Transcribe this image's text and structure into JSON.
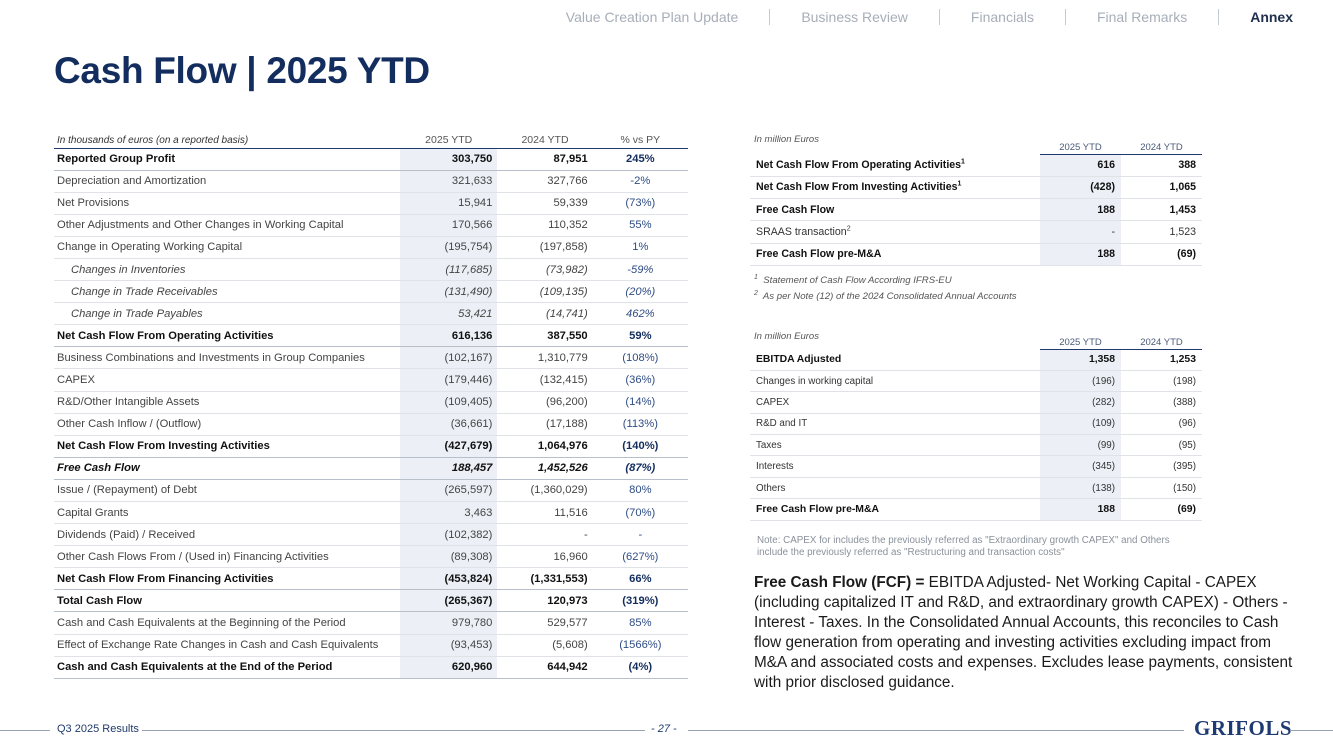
{
  "nav": {
    "items": [
      "Value Creation Plan Update",
      "Business Review",
      "Financials",
      "Final Remarks",
      "Annex"
    ],
    "active": "Annex"
  },
  "title": "Cash Flow | 2025 YTD",
  "main_table": {
    "header": {
      "label": "In thousands of euros (on a reported basis)",
      "col1": "2025 YTD",
      "col2": "2024 YTD",
      "col3": "% vs PY"
    },
    "rows": [
      {
        "label": "Reported Group Profit",
        "v1": "303,750",
        "v2": "87,951",
        "v3": "245%",
        "style": "bold"
      },
      {
        "label": "Depreciation and Amortization",
        "v1": "321,633",
        "v2": "327,766",
        "v3": "-2%",
        "style": ""
      },
      {
        "label": "Net Provisions",
        "v1": "15,941",
        "v2": "59,339",
        "v3": "(73%)",
        "style": ""
      },
      {
        "label": "Other Adjustments and Other Changes in Working Capital",
        "v1": "170,566",
        "v2": "110,352",
        "v3": "55%",
        "style": ""
      },
      {
        "label": "Change in Operating Working Capital",
        "v1": "(195,754)",
        "v2": "(197,858)",
        "v3": "1%",
        "style": ""
      },
      {
        "label": "Changes in Inventories",
        "v1": "(117,685)",
        "v2": "(73,982)",
        "v3": "-59%",
        "style": "sub"
      },
      {
        "label": "Change in Trade Receivables",
        "v1": "(131,490)",
        "v2": "(109,135)",
        "v3": "(20%)",
        "style": "sub"
      },
      {
        "label": "Change in Trade Payables",
        "v1": "53,421",
        "v2": "(14,741)",
        "v3": "462%",
        "style": "sub"
      },
      {
        "label": "Net Cash Flow From Operating Activities",
        "v1": "616,136",
        "v2": "387,550",
        "v3": "59%",
        "style": "bold"
      },
      {
        "label": "Business Combinations and Investments in Group Companies",
        "v1": "(102,167)",
        "v2": "1,310,779",
        "v3": "(108%)",
        "style": ""
      },
      {
        "label": "CAPEX",
        "v1": "(179,446)",
        "v2": "(132,415)",
        "v3": "(36%)",
        "style": ""
      },
      {
        "label": "R&D/Other Intangible Assets",
        "v1": "(109,405)",
        "v2": "(96,200)",
        "v3": "(14%)",
        "style": ""
      },
      {
        "label": "Other Cash Inflow / (Outflow)",
        "v1": "(36,661)",
        "v2": "(17,188)",
        "v3": "(113%)",
        "style": ""
      },
      {
        "label": "Net Cash Flow From Investing Activities",
        "v1": "(427,679)",
        "v2": "1,064,976",
        "v3": "(140%)",
        "style": "bold"
      },
      {
        "label": "Free Cash Flow",
        "v1": "188,457",
        "v2": "1,452,526",
        "v3": "(87%)",
        "style": "bolditalic"
      },
      {
        "label": "Issue / (Repayment) of Debt",
        "v1": "(265,597)",
        "v2": "(1,360,029)",
        "v3": "80%",
        "style": ""
      },
      {
        "label": "Capital Grants",
        "v1": "3,463",
        "v2": "11,516",
        "v3": "(70%)",
        "style": ""
      },
      {
        "label": "Dividends (Paid) / Received",
        "v1": "(102,382)",
        "v2": "-",
        "v3": "-",
        "style": ""
      },
      {
        "label": "Other Cash Flows From / (Used in) Financing Activities",
        "v1": "(89,308)",
        "v2": "16,960",
        "v3": "(627%)",
        "style": ""
      },
      {
        "label": "Net Cash Flow From Financing Activities",
        "v1": "(453,824)",
        "v2": "(1,331,553)",
        "v3": "66%",
        "style": "bold"
      },
      {
        "label": "Total Cash Flow",
        "v1": "(265,367)",
        "v2": "120,973",
        "v3": "(319%)",
        "style": "bold"
      },
      {
        "label": "Cash and Cash Equivalents at the Beginning of the Period",
        "v1": "979,780",
        "v2": "529,577",
        "v3": "85%",
        "style": ""
      },
      {
        "label": "Effect of Exchange Rate Changes in Cash and Cash Equivalents",
        "v1": "(93,453)",
        "v2": "(5,608)",
        "v3": "(1566%)",
        "style": ""
      },
      {
        "label": "Cash and Cash Equivalents at the End of the Period",
        "v1": "620,960",
        "v2": "644,942",
        "v3": "(4%)",
        "style": "bold last"
      }
    ]
  },
  "summary_table": {
    "caption": "In million Euros",
    "col1": "2025 YTD",
    "col2": "2024 YTD",
    "rows": [
      {
        "label": "Net Cash Flow From Operating Activities",
        "sup": "1",
        "v1": "616",
        "v2": "388",
        "bold": true
      },
      {
        "label": "Net Cash Flow From Investing Activities",
        "sup": "1",
        "v1": "(428)",
        "v2": "1,065",
        "bold": true
      },
      {
        "label": "Free Cash Flow",
        "sup": "",
        "v1": "188",
        "v2": "1,453",
        "bold": true
      },
      {
        "label": "SRAAS transaction",
        "sup": "2",
        "v1": "-",
        "v2": "1,523",
        "bold": false
      },
      {
        "label": "Free Cash Flow pre-M&A",
        "sup": "",
        "v1": "188",
        "v2": "(69)",
        "bold": true
      }
    ],
    "footnotes": [
      {
        "num": "1",
        "text": "Statement of Cash Flow According IFRS-EU"
      },
      {
        "num": "2",
        "text": "As per Note (12) of the 2024 Consolidated Annual Accounts"
      }
    ]
  },
  "ebitda_table": {
    "caption": "In million Euros",
    "col1": "2025 YTD",
    "col2": "2024 YTD",
    "rows": [
      {
        "label": "EBITDA Adjusted",
        "v1": "1,358",
        "v2": "1,253",
        "bold": true
      },
      {
        "label": "Changes in working capital",
        "v1": "(196)",
        "v2": "(198)",
        "bold": false
      },
      {
        "label": "CAPEX",
        "v1": "(282)",
        "v2": "(388)",
        "bold": false
      },
      {
        "label": "R&D and IT",
        "v1": "(109)",
        "v2": "(96)",
        "bold": false
      },
      {
        "label": "Taxes",
        "v1": "(99)",
        "v2": "(95)",
        "bold": false
      },
      {
        "label": "Interests",
        "v1": "(345)",
        "v2": "(395)",
        "bold": false
      },
      {
        "label": "Others",
        "v1": "(138)",
        "v2": "(150)",
        "bold": false
      },
      {
        "label": "Free Cash Flow pre-M&A",
        "v1": "188",
        "v2": "(69)",
        "bold": true
      }
    ]
  },
  "note": "Note: CAPEX for includes the previously referred as \"Extraordinary growth CAPEX\" and Others include the previously referred as \"Restructuring and transaction costs\"",
  "fcf_definition": {
    "term": "Free Cash Flow (FCF) =",
    "text": " EBITDA Adjusted- Net Working Capital - CAPEX (including capitalized IT and R&D, and extraordinary growth CAPEX) - Others - Interest - Taxes. In the Consolidated Annual Accounts, this reconciles to Cash flow generation from operating and investing activities excluding impact from M&A and associated costs and expenses. Excludes lease payments, consistent with prior disclosed guidance."
  },
  "footer": {
    "left": "Q3 2025 Results",
    "page": "- 27 -",
    "logo": "GRIFOLS"
  },
  "colors": {
    "brand_navy": "#132d5e",
    "table_highlight": "#ecf0f6"
  }
}
